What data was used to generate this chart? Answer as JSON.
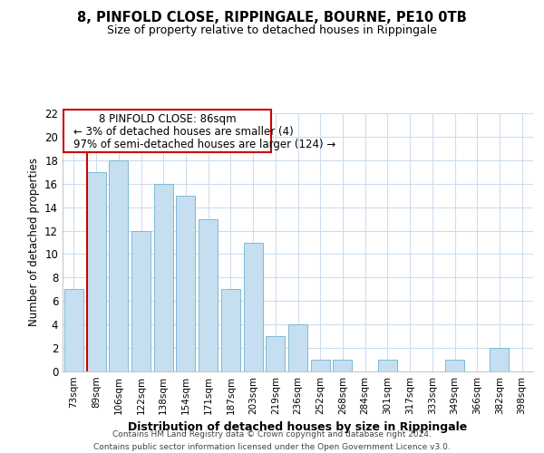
{
  "title": "8, PINFOLD CLOSE, RIPPINGALE, BOURNE, PE10 0TB",
  "subtitle": "Size of property relative to detached houses in Rippingale",
  "xlabel": "Distribution of detached houses by size in Rippingale",
  "ylabel": "Number of detached properties",
  "bar_labels": [
    "73sqm",
    "89sqm",
    "106sqm",
    "122sqm",
    "138sqm",
    "154sqm",
    "171sqm",
    "187sqm",
    "203sqm",
    "219sqm",
    "236sqm",
    "252sqm",
    "268sqm",
    "284sqm",
    "301sqm",
    "317sqm",
    "333sqm",
    "349sqm",
    "366sqm",
    "382sqm",
    "398sqm"
  ],
  "bar_values": [
    7,
    17,
    18,
    12,
    16,
    15,
    13,
    7,
    11,
    3,
    4,
    1,
    1,
    0,
    1,
    0,
    0,
    1,
    0,
    2,
    0
  ],
  "bar_color": "#c5dff0",
  "bar_edge_color": "#7fb8d8",
  "highlight_line_color": "#cc0000",
  "annotation_line1": "8 PINFOLD CLOSE: 86sqm",
  "annotation_line2": "← 3% of detached houses are smaller (4)",
  "annotation_line3": "97% of semi-detached houses are larger (124) →",
  "ylim": [
    0,
    22
  ],
  "yticks": [
    0,
    2,
    4,
    6,
    8,
    10,
    12,
    14,
    16,
    18,
    20,
    22
  ],
  "footer_line1": "Contains HM Land Registry data © Crown copyright and database right 2024.",
  "footer_line2": "Contains public sector information licensed under the Open Government Licence v3.0.",
  "background_color": "#ffffff",
  "grid_color": "#ccdded"
}
